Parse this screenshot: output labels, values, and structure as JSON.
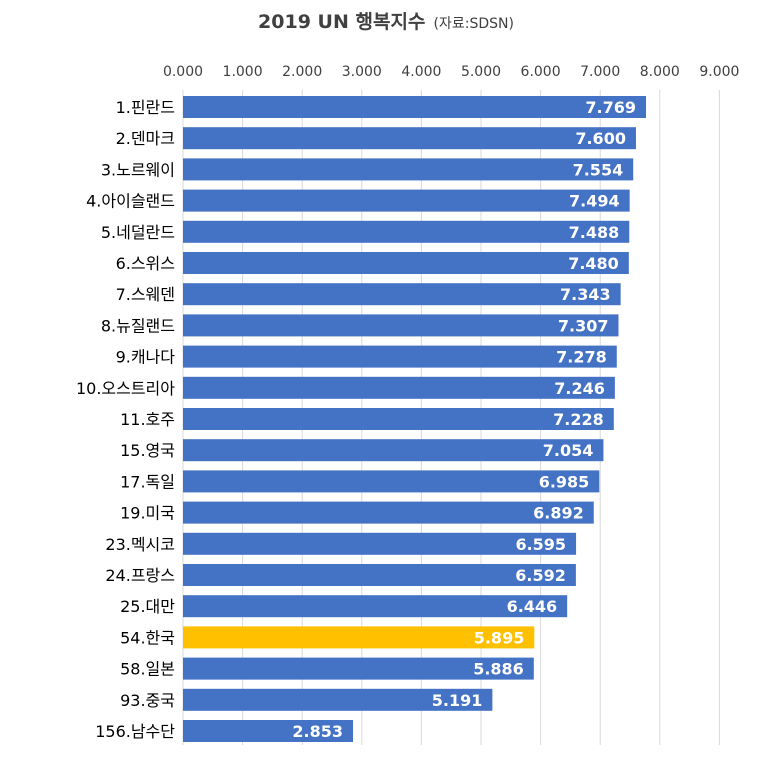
{
  "chart_data": {
    "type": "bar",
    "orientation": "horizontal",
    "title": "2019 UN 행복지수",
    "subtitle": "(자료:SDSN)",
    "xlim": [
      0,
      9
    ],
    "x_ticks": [
      "0.000",
      "1.000",
      "2.000",
      "3.000",
      "4.000",
      "5.000",
      "6.000",
      "7.000",
      "8.000",
      "9.000"
    ],
    "categories": [
      "1.핀란드",
      "2.덴마크",
      "3.노르웨이",
      "4.아이슬랜드",
      "5.네덜란드",
      "6.스위스",
      "7.스웨덴",
      "8.뉴질랜드",
      "9.캐나다",
      "10.오스트리아",
      "11.호주",
      "15.영국",
      "17.독일",
      "19.미국",
      "23.멕시코",
      "24.프랑스",
      "25.대만",
      "54.한국",
      "58.일본",
      "93.중국",
      "156.남수단"
    ],
    "values": [
      7.769,
      7.6,
      7.554,
      7.494,
      7.488,
      7.48,
      7.343,
      7.307,
      7.278,
      7.246,
      7.228,
      7.054,
      6.985,
      6.892,
      6.595,
      6.592,
      6.446,
      5.895,
      5.886,
      5.191,
      2.853
    ],
    "value_labels": [
      "7.769",
      "7.600",
      "7.554",
      "7.494",
      "7.488",
      "7.480",
      "7.343",
      "7.307",
      "7.278",
      "7.246",
      "7.228",
      "7.054",
      "6.985",
      "6.892",
      "6.595",
      "6.592",
      "6.446",
      "5.895",
      "5.886",
      "5.191",
      "2.853"
    ],
    "grid": true,
    "bar_color": "#4472C4",
    "highlight_color": "#FFC000",
    "highlight_category": "54.한국"
  }
}
